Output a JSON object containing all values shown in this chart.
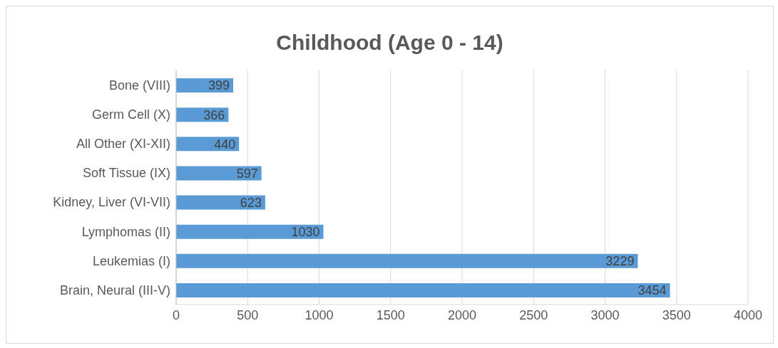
{
  "chart_data": {
    "type": "bar",
    "orientation": "horizontal",
    "title": "Childhood (Age 0 - 14)",
    "categories": [
      "Bone (VIII)",
      "Germ Cell (X)",
      "All Other (XI-XII)",
      "Soft Tissue (IX)",
      "Kidney, Liver (VI-VII)",
      "Lymphomas (II)",
      "Leukemias (I)",
      "Brain, Neural (III-V)"
    ],
    "values": [
      399,
      366,
      440,
      597,
      623,
      1030,
      3229,
      3454
    ],
    "color": "#5b9bd5",
    "xlim": [
      0,
      4000
    ],
    "xticks": [
      0,
      500,
      1000,
      1500,
      2000,
      2500,
      3000,
      3500,
      4000
    ],
    "grid": "x",
    "data_labels": true
  }
}
